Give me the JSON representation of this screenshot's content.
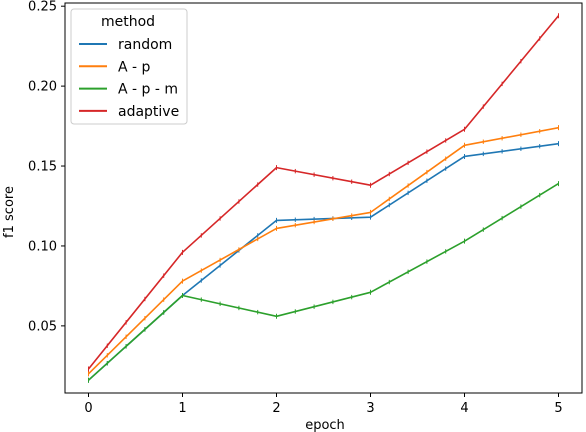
{
  "chart_data": {
    "type": "line",
    "xlabel": "epoch",
    "ylabel": "f1 score",
    "xlim": [
      -0.25,
      5.25
    ],
    "ylim": [
      0.008,
      0.252
    ],
    "xticks": [
      0,
      1,
      2,
      3,
      4,
      5
    ],
    "yticks": [
      0.05,
      0.1,
      0.15,
      0.2,
      0.25
    ],
    "ytick_labels": [
      "0.05",
      "0.10",
      "0.15",
      "0.20",
      "0.25"
    ],
    "grid": false,
    "legend": {
      "title": "method",
      "placement": "top-left"
    },
    "x": [
      0,
      1,
      2,
      3,
      4,
      5
    ],
    "series": [
      {
        "name": "random",
        "color": "#1f77b4",
        "values": [
          0.016,
          0.069,
          0.116,
          0.118,
          0.156,
          0.164
        ]
      },
      {
        "name": "A - p",
        "color": "#ff7f0e",
        "values": [
          0.02,
          0.078,
          0.111,
          0.121,
          0.163,
          0.174
        ]
      },
      {
        "name": "A - p - m",
        "color": "#2ca02c",
        "values": [
          0.016,
          0.069,
          0.056,
          0.071,
          0.103,
          0.139
        ]
      },
      {
        "name": "adaptive",
        "color": "#d62728",
        "values": [
          0.023,
          0.096,
          0.149,
          0.138,
          0.173,
          0.244
        ]
      }
    ]
  }
}
